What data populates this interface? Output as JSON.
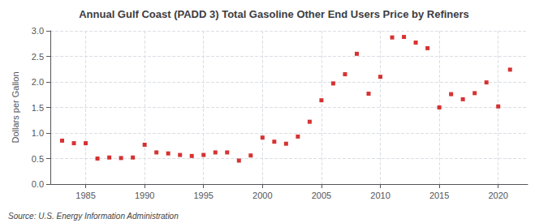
{
  "chart_data": {
    "type": "scatter",
    "title": "Annual Gulf Coast (PADD 3) Total Gasoline Other End Users Price by Refiners",
    "ylabel": "Dollars per Gallon",
    "annotations": [
      "Source: U.S. Energy Information Administration"
    ],
    "x": [
      1983,
      1984,
      1985,
      1986,
      1987,
      1988,
      1989,
      1990,
      1991,
      1992,
      1993,
      1994,
      1995,
      1996,
      1997,
      1998,
      1999,
      2000,
      2001,
      2002,
      2003,
      2004,
      2005,
      2006,
      2007,
      2008,
      2009,
      2010,
      2011,
      2012,
      2013,
      2014,
      2015,
      2016,
      2017,
      2018,
      2019,
      2020,
      2021
    ],
    "values": [
      0.85,
      0.8,
      0.8,
      0.5,
      0.52,
      0.51,
      0.52,
      0.77,
      0.62,
      0.6,
      0.57,
      0.55,
      0.57,
      0.62,
      0.62,
      0.46,
      0.56,
      0.91,
      0.83,
      0.79,
      0.93,
      1.22,
      1.64,
      1.97,
      2.15,
      2.55,
      1.77,
      2.1,
      2.87,
      2.88,
      2.77,
      2.66,
      1.5,
      1.76,
      1.66,
      1.78,
      1.99,
      1.52,
      2.24
    ],
    "color": "#cc0000",
    "marker": "square",
    "xlim": [
      1982,
      2022.5
    ],
    "xticks": [
      1985,
      1990,
      1995,
      2000,
      2005,
      2010,
      2015,
      2020
    ],
    "ylim": [
      0.0,
      3.0
    ],
    "yticks": [
      {
        "value": 0.0,
        "label": "0.0"
      },
      0.5,
      {
        "value": 1.0,
        "label": "1.0"
      },
      1.5,
      {
        "value": 2.0,
        "label": "2.0"
      },
      2.5,
      {
        "value": 3.0,
        "label": "3.0"
      }
    ],
    "grid": true
  }
}
